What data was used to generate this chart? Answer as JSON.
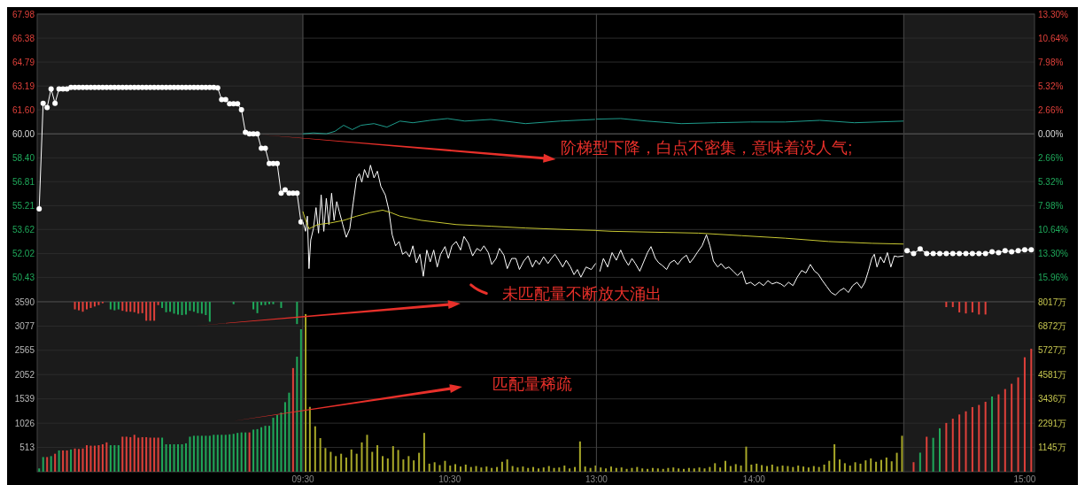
{
  "chart_data": [
    {
      "type": "line",
      "grid": "y",
      "categories": [
        null,
        null,
        null,
        null,
        null,
        null,
        null,
        null,
        null,
        null,
        null,
        null,
        null,
        null,
        null,
        null,
        null,
        null,
        null,
        null,
        null,
        null,
        null,
        null,
        null,
        null,
        null,
        null,
        null,
        null,
        null,
        null,
        null,
        null,
        null,
        null,
        null,
        null,
        null,
        null,
        null,
        null,
        null,
        null,
        null,
        null,
        null,
        null,
        null,
        null,
        null,
        null,
        null,
        null,
        null,
        null,
        null,
        null,
        null,
        null,
        null,
        null,
        null,
        null,
        null,
        null,
        null
      ],
      "ylim": [
        48.8,
        67.98
      ],
      "yticks": [
        67.98,
        66.38,
        64.79,
        63.19,
        {
          "value": 61.6,
          "label": "61.60"
        },
        {
          "value": 60,
          "label": "60.00"
        },
        {
          "value": 58.4,
          "label": "58.40"
        },
        56.81,
        55.21,
        53.62,
        52.02,
        50.43
      ],
      "ref_lines": [
        {
          "axis": "y",
          "value": 60,
          "color": "#5a5a5a"
        }
      ],
      "series": [
        {
          "color": "#ffffff",
          "marker": "circle",
          "values": [
            55.0,
            62.04,
            61.75,
            63.0,
            62.04,
            63.0,
            63.0,
            63.0,
            63.1,
            63.1,
            63.1,
            63.1,
            63.1,
            63.1,
            63.1,
            63.1,
            63.1,
            63.1,
            63.1,
            63.1,
            63.1,
            63.1,
            63.1,
            63.1,
            63.1,
            63.1,
            63.1,
            63.1,
            63.1,
            63.1,
            63.1,
            63.1,
            63.1,
            63.1,
            63.1,
            63.1,
            63.1,
            63.1,
            63.1,
            63.1,
            63.1,
            63.1,
            63.1,
            63.1,
            63.1,
            63.07,
            62.28,
            62.28,
            62.0,
            62.0,
            62.0,
            61.6,
            60.1,
            60.0,
            60.0,
            60.0,
            59.04,
            59.04,
            58.02,
            58.02,
            58.02,
            56.04,
            56.27,
            56.04,
            56.04,
            56.04,
            54.12
          ]
        }
      ]
    },
    {
      "type": "line",
      "grid": "y",
      "tick_labels": false,
      "xlim": [
        9.5,
        11.5
      ],
      "ylim": [
        48.8,
        67.98
      ],
      "yticks": [
        67.98,
        66.38,
        64.79,
        63.19,
        61.6,
        60,
        58.4,
        56.81,
        55.21,
        53.62,
        52.02,
        50.43
      ],
      "ref_lines": [
        {
          "axis": "y",
          "value": 60,
          "color": "#5a5a5a"
        }
      ],
      "annotations": [
        "阶梯型下降，白点不密集，意味着没人气;",
        "未匹配量不断放大涌出"
      ],
      "series": [
        {
          "color": "#ffffff",
          "x": [
            9.5,
            9.518,
            9.53,
            9.541,
            9.553,
            9.571,
            9.589,
            9.606,
            9.624,
            9.642,
            9.659,
            9.677,
            9.695,
            9.712,
            9.73,
            9.748,
            9.771,
            9.795,
            9.819,
            9.842,
            9.866,
            9.884,
            9.901,
            9.919,
            9.943,
            9.96,
            9.984,
            10.007,
            10.031,
            10.061,
            10.084,
            10.108,
            10.131,
            10.155,
            10.179,
            10.202,
            10.226,
            10.249,
            10.273,
            10.297,
            10.32,
            10.344,
            10.367,
            10.391,
            10.415,
            10.438,
            10.468,
            10.491,
            10.515,
            10.544,
            10.574,
            10.597,
            10.627,
            10.656,
            10.686,
            10.71,
            10.733,
            10.763,
            10.786,
            10.816,
            10.839,
            10.869,
            10.892,
            10.922,
            10.951,
            10.975,
            11.005,
            11.034,
            11.064,
            11.087,
            11.111,
            11.14,
            11.17,
            11.193,
            11.217,
            11.246,
            11.27,
            11.294,
            11.323,
            11.347,
            11.37,
            11.394,
            11.429,
            11.465,
            11.494
          ],
          "values": [
            54.12,
            53.5,
            54.51,
            51.01,
            52.93,
            53.67,
            55.08,
            53.38,
            55.93,
            53.5,
            55.7,
            53.95,
            56.04,
            54.23,
            55.48,
            54.8,
            53.95,
            53.1,
            53.67,
            55.36,
            57.06,
            57.34,
            56.78,
            57.62,
            57.06,
            57.91,
            57.06,
            57.51,
            56.49,
            55.93,
            54.97,
            53.27,
            52.53,
            52.82,
            51.97,
            52.14,
            51.8,
            52.53,
            51.4,
            51.97,
            50.5,
            52.25,
            51.46,
            52.25,
            51.12,
            51.97,
            52.48,
            51.69,
            52.53,
            52.82,
            52.25,
            53.16,
            52.7,
            51.86,
            52.36,
            52.19,
            52.53,
            52.08,
            51.29,
            51.69,
            52.36,
            51.91,
            51.01,
            51.69,
            51.69,
            50.95,
            51.52,
            51.86,
            51.12,
            51.57,
            51.29,
            51.8,
            51.35,
            51.69,
            51.97,
            51.52,
            51.12,
            51.57,
            51.12,
            50.61,
            50.95,
            50.44,
            51.12,
            50.95,
            51.35
          ]
        },
        {
          "color": "#c8c832",
          "x": [
            9.5,
            9.518,
            9.541,
            9.6,
            9.689,
            9.777,
            9.866,
            9.954,
            10.043,
            10.102,
            10.161,
            10.308,
            10.544,
            10.78,
            11.016,
            11.311,
            11.5
          ],
          "values": [
            54.8,
            54.23,
            53.67,
            53.95,
            54.06,
            54.23,
            54.51,
            54.74,
            54.91,
            54.74,
            54.51,
            54.23,
            53.95,
            53.84,
            53.72,
            53.61,
            53.56
          ]
        },
        {
          "color": "#1e9c8c",
          "x": [
            9.5,
            9.571,
            9.659,
            9.718,
            9.777,
            9.836,
            9.895,
            9.984,
            10.072,
            10.161,
            10.249,
            10.367,
            10.485,
            10.603,
            10.78,
            11.016,
            11.252,
            11.488
          ],
          "values": [
            60.0,
            60.06,
            60.0,
            60.17,
            60.57,
            60.28,
            60.57,
            60.68,
            60.45,
            60.85,
            60.74,
            60.9,
            61.02,
            60.85,
            60.96,
            60.68,
            60.85,
            60.96
          ]
        }
      ]
    },
    {
      "type": "line",
      "grid": "y",
      "tick_labels": false,
      "xlim": [
        13,
        14.95
      ],
      "ylim": [
        48.8,
        67.98
      ],
      "yticks": [
        67.98,
        66.38,
        64.79,
        63.19,
        61.6,
        60,
        58.4,
        56.81,
        55.21,
        53.62,
        52.02,
        50.43
      ],
      "ref_lines": [
        {
          "axis": "y",
          "value": 60,
          "color": "#5a5a5a"
        }
      ],
      "series": [
        {
          "color": "#ffffff",
          "x": [
            13.022,
            13.044,
            13.071,
            13.099,
            13.126,
            13.154,
            13.176,
            13.203,
            13.225,
            13.247,
            13.275,
            13.297,
            13.324,
            13.346,
            13.374,
            13.395,
            13.417,
            13.445,
            13.467,
            13.494,
            13.516,
            13.544,
            13.571,
            13.593,
            13.615,
            13.643,
            13.67,
            13.698,
            13.72,
            13.742,
            13.769,
            13.791,
            13.818,
            13.84,
            13.868,
            13.895,
            13.923,
            13.95,
            13.978,
            14.005,
            14.033,
            14.06,
            14.088,
            14.115,
            14.143,
            14.17,
            14.192,
            14.219,
            14.247,
            14.274,
            14.302,
            14.329,
            14.357,
            14.384,
            14.406,
            14.434,
            14.461,
            14.489,
            14.516,
            14.544,
            14.571,
            14.598,
            14.626,
            14.653,
            14.681,
            14.703,
            14.725,
            14.747,
            14.763,
            14.78,
            14.802,
            14.824,
            14.846,
            14.868,
            14.89,
            14.912,
            14.95
          ],
          "values": [
            50.84,
            51.69,
            51.12,
            52.08,
            51.57,
            52.25,
            51.69,
            51.23,
            51.69,
            51.35,
            50.84,
            51.4,
            52.08,
            52.48,
            51.69,
            51.4,
            51.23,
            50.95,
            51.4,
            51.57,
            51.29,
            51.69,
            51.91,
            51.4,
            51.69,
            52.14,
            52.53,
            53.27,
            52.53,
            51.52,
            51.12,
            51.35,
            51.01,
            51.12,
            50.84,
            50.55,
            50.84,
            49.99,
            50.1,
            49.88,
            50.1,
            49.88,
            50.21,
            49.99,
            50.1,
            49.99,
            49.82,
            50.1,
            49.88,
            50.44,
            50.89,
            50.72,
            51.29,
            50.84,
            50.67,
            50.21,
            49.82,
            49.42,
            49.25,
            49.54,
            49.71,
            49.42,
            49.88,
            50.1,
            49.71,
            50.1,
            50.84,
            51.69,
            51.97,
            51.12,
            51.8,
            51.4,
            52.08,
            51.12,
            51.86,
            51.8,
            51.86
          ]
        },
        {
          "color": "#c8c832",
          "x": [
            13,
            13.099,
            13.374,
            13.648,
            13.923,
            14.197,
            14.472,
            14.747,
            14.95
          ],
          "values": [
            53.55,
            53.5,
            53.44,
            53.38,
            53.21,
            53.04,
            52.82,
            52.7,
            52.65
          ]
        },
        {
          "color": "#1e9c8c",
          "x": [
            13,
            13.154,
            13.319,
            13.538,
            13.758,
            13.978,
            14.197,
            14.417,
            14.637,
            14.95
          ],
          "values": [
            60.98,
            61.02,
            60.85,
            60.68,
            60.74,
            60.79,
            60.79,
            60.9,
            60.74,
            60.85
          ]
        }
      ]
    },
    {
      "type": "line",
      "grid": "y",
      "categories": [
        null,
        null,
        null,
        null,
        null,
        null,
        null,
        null,
        null,
        null,
        null,
        null,
        null,
        null,
        null,
        null,
        null,
        null,
        null,
        null
      ],
      "ylim": [
        -18.67,
        13.3
      ],
      "yticks": [
        {
          "value": 13.3,
          "label": "13.30%"
        },
        {
          "value": 10.64,
          "label": "10.64%"
        },
        {
          "value": 7.98,
          "label": "7.98%"
        },
        {
          "value": 5.32,
          "label": "5.32%"
        },
        {
          "value": 2.66,
          "label": "2.66%"
        },
        {
          "value": 0,
          "label": "0.00%"
        },
        {
          "value": -2.66,
          "label": "2.66%"
        },
        {
          "value": -5.32,
          "label": "5.32%"
        },
        {
          "value": -7.98,
          "label": "7.98%"
        },
        {
          "value": -10.64,
          "label": "10.64%"
        },
        {
          "value": -13.3,
          "label": "13.30%"
        },
        {
          "value": -15.96,
          "label": "15.96%"
        }
      ],
      "ref_lines": [
        {
          "axis": "y",
          "value": 0,
          "color": "#5a5a5a"
        }
      ],
      "series": [
        {
          "color": "#ffffff",
          "marker": "circle",
          "values": [
            -13.0,
            -13.3,
            -12.8,
            -13.3,
            -13.3,
            -13.3,
            -13.3,
            -13.3,
            -13.3,
            -13.3,
            -13.3,
            -13.3,
            -13.3,
            -13.1,
            -13.2,
            -13.0,
            -13.1,
            -13.0,
            -12.9,
            -12.9
          ]
        }
      ]
    },
    {
      "type": "bar",
      "grid": "y",
      "categories": [
        null,
        null,
        null,
        null,
        null,
        null,
        null,
        null,
        null,
        null,
        null,
        null,
        null,
        null,
        null,
        null,
        null,
        null,
        null,
        null,
        null,
        null,
        null,
        null,
        null,
        null,
        null,
        null,
        null,
        null,
        null,
        null,
        null,
        null,
        null,
        null,
        null,
        null,
        null,
        null,
        null,
        null,
        null,
        null,
        null,
        null,
        null,
        null,
        null,
        null,
        null,
        null,
        null,
        null,
        null,
        null,
        null,
        null,
        null,
        null,
        null,
        null,
        null,
        null,
        null,
        null,
        null
      ],
      "ylim": [
        0,
        3590
      ],
      "yticks": [
        513,
        1026,
        1539,
        2052,
        2565,
        3077,
        3590
      ],
      "series": [
        {
          "values": [
            70,
            310,
            310,
            330,
            380,
            450,
            450,
            450,
            470,
            490,
            480,
            490,
            560,
            550,
            550,
            560,
            580,
            620,
            560,
            560,
            560,
            740,
            740,
            730,
            780,
            720,
            730,
            730,
            720,
            720,
            720,
            720,
            580,
            580,
            580,
            580,
            580,
            600,
            740,
            760,
            760,
            760,
            760,
            760,
            780,
            780,
            780,
            780,
            790,
            800,
            820,
            830,
            830,
            830,
            890,
            900,
            940,
            970,
            970,
            1140,
            1200,
            1250,
            1470,
            1670,
            2190,
            2430,
            3010
          ],
          "colors": [
            "#1fa85a",
            "#1fa85a",
            "#e0403a",
            "#1fa85a",
            "#e0403a",
            "#1fa85a",
            "#e0403a",
            "#e0403a",
            "#1fa85a",
            "#e0403a",
            "#e0403a",
            "#e0403a",
            "#e0403a",
            "#e0403a",
            "#e0403a",
            "#e0403a",
            "#e0403a",
            "#e0403a",
            "#1fa85a",
            "#1fa85a",
            "#1fa85a",
            "#e0403a",
            "#e0403a",
            "#e0403a",
            "#e0403a",
            "#e0403a",
            "#e0403a",
            "#e0403a",
            "#e0403a",
            "#e0403a",
            "#e0403a",
            "#1fa85a",
            "#1fa85a",
            "#1fa85a",
            "#1fa85a",
            "#1fa85a",
            "#1fa85a",
            "#1fa85a",
            "#1fa85a",
            "#1fa85a",
            "#1fa85a",
            "#1fa85a",
            "#1fa85a",
            "#1fa85a",
            "#1fa85a",
            "#1fa85a",
            "#1fa85a",
            "#1fa85a",
            "#1fa85a",
            "#1fa85a",
            "#1fa85a",
            "#1fa85a",
            "#1fa85a",
            "#e0403a",
            "#1fa85a",
            "#1fa85a",
            "#1fa85a",
            "#1fa85a",
            "#1fa85a",
            "#1fa85a",
            "#1fa85a",
            "#1fa85a",
            "#1fa85a",
            "#1fa85a",
            "#e0403a",
            "#1fa85a",
            "#1fa85a"
          ]
        },
        {
          "base": [
            null,
            null,
            null,
            null,
            null,
            null,
            null,
            null,
            null,
            3590,
            3590,
            3590,
            3590,
            3590,
            3590,
            3590,
            3590,
            null,
            3590,
            3590,
            3590,
            3590,
            3590,
            3590,
            3590,
            3590,
            3590,
            3590,
            3590,
            3590,
            3590,
            3590,
            3590,
            3590,
            3590,
            3590,
            3590,
            3590,
            3590,
            3590,
            3590,
            3590,
            3590,
            3590,
            null,
            null,
            null,
            null,
            null,
            3590,
            null,
            null,
            null,
            null,
            3590,
            3590,
            3590,
            3590,
            3590,
            3590,
            null,
            3590,
            null,
            null,
            null,
            3590,
            null
          ],
          "values": [
            null,
            null,
            null,
            null,
            null,
            null,
            null,
            null,
            null,
            -160,
            -180,
            -210,
            -160,
            -130,
            -100,
            -70,
            -30,
            null,
            -160,
            -180,
            -160,
            -190,
            -210,
            -210,
            -220,
            -250,
            -240,
            -400,
            -400,
            -400,
            -70,
            -130,
            -220,
            -210,
            -250,
            -270,
            -280,
            -270,
            -190,
            -210,
            -240,
            -250,
            -280,
            -420,
            null,
            null,
            null,
            null,
            null,
            -50,
            null,
            null,
            null,
            null,
            -160,
            -240,
            -70,
            -70,
            -50,
            -50,
            null,
            -130,
            null,
            null,
            null,
            -470,
            null
          ],
          "colors": [
            null,
            null,
            null,
            null,
            null,
            null,
            null,
            null,
            null,
            "#e0403a",
            "#e0403a",
            "#e0403a",
            "#e0403a",
            "#e0403a",
            "#e0403a",
            "#e0403a",
            "#e0403a",
            null,
            "#1fa85a",
            "#1fa85a",
            "#1fa85a",
            "#e0403a",
            "#e0403a",
            "#e0403a",
            "#e0403a",
            "#e0403a",
            "#e0403a",
            "#e0403a",
            "#e0403a",
            "#e0403a",
            "#e0403a",
            "#1fa85a",
            "#1fa85a",
            "#1fa85a",
            "#1fa85a",
            "#1fa85a",
            "#1fa85a",
            "#1fa85a",
            "#1fa85a",
            "#1fa85a",
            "#1fa85a",
            "#1fa85a",
            "#1fa85a",
            "#1fa85a",
            null,
            null,
            null,
            null,
            null,
            "#1fa85a",
            null,
            null,
            null,
            null,
            "#1fa85a",
            "#1fa85a",
            "#1fa85a",
            "#1fa85a",
            "#1fa85a",
            "#1fa85a",
            null,
            "#1fa85a",
            null,
            null,
            null,
            "#1fa85a",
            null
          ]
        }
      ]
    },
    {
      "type": "bar",
      "grid": "y",
      "tick_labels": "x",
      "xlim": [
        9.5,
        11.5
      ],
      "xticks": [
        {
          "value": 9.5,
          "label": "09:30"
        },
        {
          "value": 10.5,
          "label": "10:30"
        }
      ],
      "ylim": [
        0,
        3590
      ],
      "yticks": [
        513,
        1026,
        1539,
        2052,
        2565,
        3077,
        3590
      ],
      "series": [
        {
          "color": "#a8a828",
          "x": [
            9.518,
            9.547,
            9.583,
            9.618,
            9.653,
            9.689,
            9.724,
            9.76,
            9.795,
            9.83,
            9.866,
            9.901,
            9.937,
            9.972,
            10.007,
            10.043,
            10.078,
            10.114,
            10.149,
            10.184,
            10.22,
            10.255,
            10.291,
            10.326,
            10.361,
            10.397,
            10.432,
            10.468,
            10.503,
            10.538,
            10.574,
            10.609,
            10.645,
            10.68,
            10.715,
            10.751,
            10.786,
            10.822,
            10.857,
            10.892,
            10.928,
            10.963,
            10.999,
            11.034,
            11.069,
            11.105,
            11.14,
            11.176,
            11.211,
            11.246,
            11.282,
            11.317,
            11.353,
            11.388,
            11.423,
            11.459,
            11.494
          ],
          "values": [
            3330,
            1370,
            960,
            710,
            500,
            420,
            330,
            380,
            300,
            470,
            380,
            620,
            780,
            420,
            560,
            330,
            280,
            540,
            460,
            260,
            330,
            240,
            400,
            820,
            170,
            200,
            140,
            230,
            130,
            160,
            110,
            150,
            100,
            120,
            90,
            110,
            80,
            100,
            210,
            260,
            120,
            90,
            110,
            80,
            100,
            70,
            90,
            120,
            80,
            90,
            130,
            70,
            100,
            640,
            110,
            80,
            130
          ]
        }
      ]
    },
    {
      "type": "bar",
      "grid": "y",
      "tick_labels": "x",
      "xlim": [
        13,
        14.95
      ],
      "xticks": [
        {
          "value": 13,
          "label": "13:00"
        },
        {
          "value": 14,
          "label": "14:00"
        }
      ],
      "ylim": [
        0,
        3590
      ],
      "yticks": [
        513,
        1026,
        1539,
        2052,
        2565,
        3077,
        3590
      ],
      "annotations": [
        "匹配量稀疏"
      ],
      "series": [
        {
          "color": "#a8a828",
          "x": [
            13.027,
            13.06,
            13.093,
            13.126,
            13.159,
            13.192,
            13.225,
            13.258,
            13.291,
            13.324,
            13.357,
            13.39,
            13.423,
            13.455,
            13.488,
            13.521,
            13.554,
            13.587,
            13.62,
            13.653,
            13.686,
            13.719,
            13.752,
            13.785,
            13.818,
            13.851,
            13.884,
            13.917,
            13.95,
            13.983,
            14.016,
            14.049,
            14.082,
            14.115,
            14.148,
            14.181,
            14.214,
            14.247,
            14.28,
            14.313,
            14.346,
            14.379,
            14.412,
            14.445,
            14.477,
            14.51,
            14.543,
            14.576,
            14.609,
            14.642,
            14.675,
            14.708,
            14.741,
            14.774,
            14.807,
            14.84,
            14.873,
            14.906,
            14.939
          ],
          "values": [
            90,
            70,
            110,
            80,
            90,
            60,
            80,
            100,
            70,
            60,
            80,
            70,
            60,
            80,
            90,
            70,
            60,
            80,
            70,
            90,
            70,
            100,
            180,
            90,
            230,
            120,
            160,
            130,
            530,
            150,
            170,
            140,
            120,
            150,
            110,
            130,
            120,
            100,
            130,
            110,
            90,
            120,
            100,
            150,
            230,
            580,
            260,
            180,
            130,
            200,
            170,
            240,
            280,
            210,
            250,
            300,
            220,
            400,
            760
          ]
        }
      ]
    },
    {
      "type": "bar",
      "grid": "y",
      "categories": [
        null,
        null,
        null,
        null,
        null,
        null,
        null,
        null,
        null,
        null,
        null,
        null,
        null,
        null,
        null,
        null,
        null,
        null,
        "15:00",
        null
      ],
      "y2lim": [
        0,
        8017
      ],
      "y2ticks": [
        {
          "value": 1145,
          "label": "1145万"
        },
        {
          "value": 2291,
          "label": "2291万"
        },
        {
          "value": 3436,
          "label": "3436万"
        },
        {
          "value": 4581,
          "label": "4581万"
        },
        {
          "value": 5727,
          "label": "5727万"
        },
        {
          "value": 6872,
          "label": "6872万"
        },
        {
          "value": 8017,
          "label": "8017万"
        }
      ],
      "series": [
        {
          "axis": "y2",
          "values": [
            null,
            450,
            900,
            1650,
            1600,
            2050,
            2300,
            2500,
            2700,
            2850,
            3050,
            3150,
            3300,
            3550,
            3650,
            3900,
            4150,
            4450,
            5400,
            5800
          ],
          "colors": [
            null,
            "#e0403a",
            "#1fa85a",
            "#e0403a",
            "#1fa85a",
            "#1fa85a",
            "#e0403a",
            "#e0403a",
            "#e0403a",
            "#e0403a",
            "#e0403a",
            "#e0403a",
            "#e0403a",
            "#1fa85a",
            "#e0403a",
            "#e0403a",
            "#e0403a",
            "#e0403a",
            "#e0403a",
            "#e0403a"
          ]
        },
        {
          "axis": "y2",
          "color": "#e0403a",
          "base": [
            null,
            null,
            null,
            null,
            null,
            null,
            8017,
            8017,
            8017,
            8017,
            8017,
            8017,
            8017,
            null,
            null,
            null,
            null,
            null,
            null,
            null
          ],
          "values": [
            null,
            null,
            null,
            null,
            null,
            null,
            -250,
            -250,
            -500,
            -550,
            -500,
            -600,
            -600,
            null,
            null,
            null,
            null,
            null,
            null,
            null
          ]
        }
      ]
    }
  ]
}
